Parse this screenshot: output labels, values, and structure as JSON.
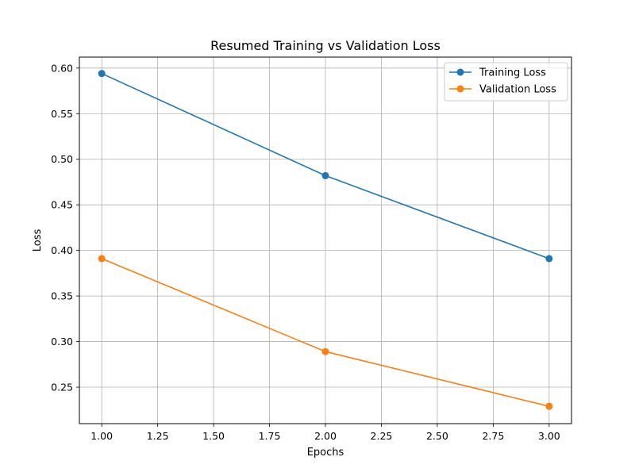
{
  "chart_data": {
    "type": "line",
    "title": "Resumed Training vs Validation Loss",
    "xlabel": "Epochs",
    "ylabel": "Loss",
    "x": [
      1,
      2,
      3
    ],
    "xlim": [
      0.9,
      3.1
    ],
    "ylim": [
      0.21,
      0.612
    ],
    "xticks": [
      1.0,
      1.25,
      1.5,
      1.75,
      2.0,
      2.25,
      2.5,
      2.75,
      3.0
    ],
    "xtick_labels": [
      "1.00",
      "1.25",
      "1.50",
      "1.75",
      "2.00",
      "2.25",
      "2.50",
      "2.75",
      "3.00"
    ],
    "yticks": [
      0.25,
      0.3,
      0.35,
      0.4,
      0.45,
      0.5,
      0.55,
      0.6
    ],
    "ytick_labels": [
      "0.25",
      "0.30",
      "0.35",
      "0.40",
      "0.45",
      "0.50",
      "0.55",
      "0.60"
    ],
    "grid": true,
    "legend_position": "top-right",
    "series": [
      {
        "name": "Training Loss",
        "color": "#1f77b4",
        "values": [
          0.594,
          0.482,
          0.391
        ]
      },
      {
        "name": "Validation Loss",
        "color": "#ff7f0e",
        "values": [
          0.391,
          0.289,
          0.229
        ]
      }
    ]
  }
}
